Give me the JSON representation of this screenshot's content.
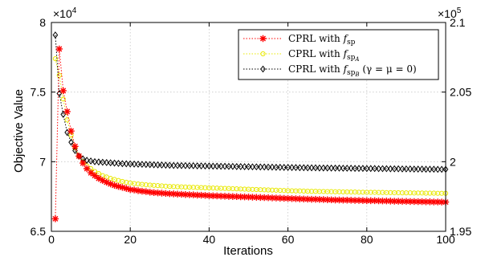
{
  "chart_data": {
    "type": "line",
    "xlabel": "Iterations",
    "ylabel": "Objective Value",
    "xlim": [
      0,
      100
    ],
    "ylim": [
      65000,
      80000
    ],
    "y2lim": [
      195000,
      210000
    ],
    "x_ticks": [
      "0",
      "20",
      "40",
      "60",
      "80",
      "100"
    ],
    "y_ticks": [
      "6.5",
      "7",
      "7.5",
      "8"
    ],
    "y2_ticks": [
      "1.95",
      "2",
      "2.05",
      "2.1"
    ],
    "y_exponent": "×10",
    "y_exponent_power": "4",
    "y2_exponent": "×10",
    "y2_exponent_power": "5",
    "grid": true,
    "legend_position": "top-right",
    "series": [
      {
        "legend_prefix": "CPRL with ",
        "legend_math": "f",
        "legend_sub": "sp",
        "legend_subsub": "",
        "legend_suffix": "",
        "color": "#ff0000",
        "marker": "asterisk",
        "axis": "left",
        "x": [
          1,
          2,
          3,
          4,
          5,
          6,
          7,
          8,
          9,
          10,
          11,
          12,
          13,
          14,
          15,
          16,
          17,
          18,
          19,
          20,
          21,
          22,
          23,
          24,
          25,
          26,
          27,
          28,
          29,
          30,
          31,
          32,
          33,
          34,
          35,
          36,
          37,
          38,
          39,
          40,
          41,
          42,
          43,
          44,
          45,
          46,
          47,
          48,
          49,
          50,
          51,
          52,
          53,
          54,
          55,
          56,
          57,
          58,
          59,
          60,
          61,
          62,
          63,
          64,
          65,
          66,
          67,
          68,
          69,
          70,
          71,
          72,
          73,
          74,
          75,
          76,
          77,
          78,
          79,
          80,
          81,
          82,
          83,
          84,
          85,
          86,
          87,
          88,
          89,
          90,
          91,
          92,
          93,
          94,
          95,
          96,
          97,
          98,
          99,
          100
        ],
        "values": [
          65900,
          78100,
          75100,
          73600,
          72200,
          71100,
          70400,
          69900,
          69500,
          69200,
          69000,
          68800,
          68650,
          68520,
          68400,
          68300,
          68220,
          68150,
          68080,
          68000,
          67970,
          67920,
          67880,
          67850,
          67810,
          67780,
          67760,
          67740,
          67720,
          67700,
          67690,
          67670,
          67660,
          67640,
          67630,
          67620,
          67600,
          67590,
          67580,
          67560,
          67550,
          67540,
          67530,
          67520,
          67510,
          67500,
          67490,
          67480,
          67470,
          67460,
          67450,
          67440,
          67430,
          67420,
          67410,
          67400,
          67390,
          67380,
          67370,
          67360,
          67350,
          67340,
          67330,
          67320,
          67310,
          67300,
          67300,
          67290,
          67280,
          67270,
          67260,
          67250,
          67250,
          67240,
          67240,
          67230,
          67220,
          67220,
          67210,
          67200,
          67200,
          67200,
          67190,
          67180,
          67180,
          67170,
          67160,
          67160,
          67150,
          67150,
          67140,
          67140,
          67130,
          67130,
          67120,
          67120,
          67110,
          67110,
          67100,
          67100
        ]
      },
      {
        "legend_prefix": "CPRL with ",
        "legend_math": "f",
        "legend_sub": "sp",
        "legend_subsub": "A",
        "legend_suffix": "",
        "color": "#e8e800",
        "marker": "circle",
        "axis": "left",
        "x": [
          1,
          2,
          3,
          4,
          5,
          6,
          7,
          8,
          9,
          10,
          11,
          12,
          13,
          14,
          15,
          16,
          17,
          18,
          19,
          20,
          21,
          22,
          23,
          24,
          25,
          26,
          27,
          28,
          29,
          30,
          31,
          32,
          33,
          34,
          35,
          36,
          37,
          38,
          39,
          40,
          41,
          42,
          43,
          44,
          45,
          46,
          47,
          48,
          49,
          50,
          51,
          52,
          53,
          54,
          55,
          56,
          57,
          58,
          59,
          60,
          61,
          62,
          63,
          64,
          65,
          66,
          67,
          68,
          69,
          70,
          71,
          72,
          73,
          74,
          75,
          76,
          77,
          78,
          79,
          80,
          81,
          82,
          83,
          84,
          85,
          86,
          87,
          88,
          89,
          90,
          91,
          92,
          93,
          94,
          95,
          96,
          97,
          98,
          99,
          100
        ],
        "values": [
          77400,
          76200,
          74500,
          73000,
          71900,
          71000,
          70400,
          70000,
          69700,
          69500,
          69300,
          69150,
          69000,
          68900,
          68800,
          68720,
          68650,
          68580,
          68520,
          68470,
          68430,
          68400,
          68370,
          68340,
          68320,
          68300,
          68280,
          68260,
          68240,
          68220,
          68210,
          68200,
          68190,
          68180,
          68170,
          68160,
          68150,
          68140,
          68130,
          68120,
          68110,
          68100,
          68090,
          68080,
          68070,
          68060,
          68050,
          68040,
          68030,
          68020,
          68010,
          68000,
          67990,
          67980,
          67970,
          67960,
          67950,
          67940,
          67930,
          67920,
          67910,
          67900,
          67900,
          67890,
          67880,
          67870,
          67870,
          67860,
          67860,
          67850,
          67850,
          67840,
          67840,
          67830,
          67830,
          67820,
          67820,
          67810,
          67810,
          67800,
          67800,
          67800,
          67790,
          67790,
          67780,
          67780,
          67770,
          67770,
          67760,
          67760,
          67760,
          67750,
          67750,
          67750,
          67740,
          67740,
          67740,
          67730,
          67730,
          67730
        ]
      },
      {
        "legend_prefix": "CPRL with ",
        "legend_math": "f",
        "legend_sub": "sp",
        "legend_subsub": "B",
        "legend_suffix": " (γ = μ = 0)",
        "color": "#000000",
        "marker": "diamond",
        "axis": "right",
        "x": [
          1,
          2,
          3,
          4,
          5,
          6,
          7,
          8,
          9,
          10,
          11,
          12,
          13,
          14,
          15,
          16,
          17,
          18,
          19,
          20,
          21,
          22,
          23,
          24,
          25,
          26,
          27,
          28,
          29,
          30,
          31,
          32,
          33,
          34,
          35,
          36,
          37,
          38,
          39,
          40,
          41,
          42,
          43,
          44,
          45,
          46,
          47,
          48,
          49,
          50,
          51,
          52,
          53,
          54,
          55,
          56,
          57,
          58,
          59,
          60,
          61,
          62,
          63,
          64,
          65,
          66,
          67,
          68,
          69,
          70,
          71,
          72,
          73,
          74,
          75,
          76,
          77,
          78,
          79,
          80,
          81,
          82,
          83,
          84,
          85,
          86,
          87,
          88,
          89,
          90,
          91,
          92,
          93,
          94,
          95,
          96,
          97,
          98,
          99,
          100
        ],
        "values": [
          209100,
          204900,
          203400,
          202100,
          201400,
          200800,
          200400,
          200200,
          200100,
          200050,
          200000,
          199980,
          199960,
          199940,
          199920,
          199900,
          199880,
          199860,
          199850,
          199840,
          199830,
          199820,
          199810,
          199800,
          199790,
          199780,
          199770,
          199760,
          199750,
          199740,
          199730,
          199730,
          199720,
          199720,
          199710,
          199710,
          199700,
          199700,
          199690,
          199690,
          199680,
          199680,
          199670,
          199670,
          199660,
          199660,
          199650,
          199650,
          199640,
          199640,
          199630,
          199630,
          199620,
          199620,
          199610,
          199610,
          199600,
          199600,
          199590,
          199590,
          199580,
          199580,
          199570,
          199570,
          199560,
          199560,
          199560,
          199550,
          199550,
          199550,
          199540,
          199540,
          199540,
          199530,
          199530,
          199530,
          199520,
          199520,
          199520,
          199510,
          199510,
          199510,
          199500,
          199500,
          199500,
          199490,
          199490,
          199490,
          199480,
          199480,
          199480,
          199470,
          199470,
          199470,
          199460,
          199460,
          199460,
          199450,
          199450,
          199450
        ]
      }
    ]
  }
}
